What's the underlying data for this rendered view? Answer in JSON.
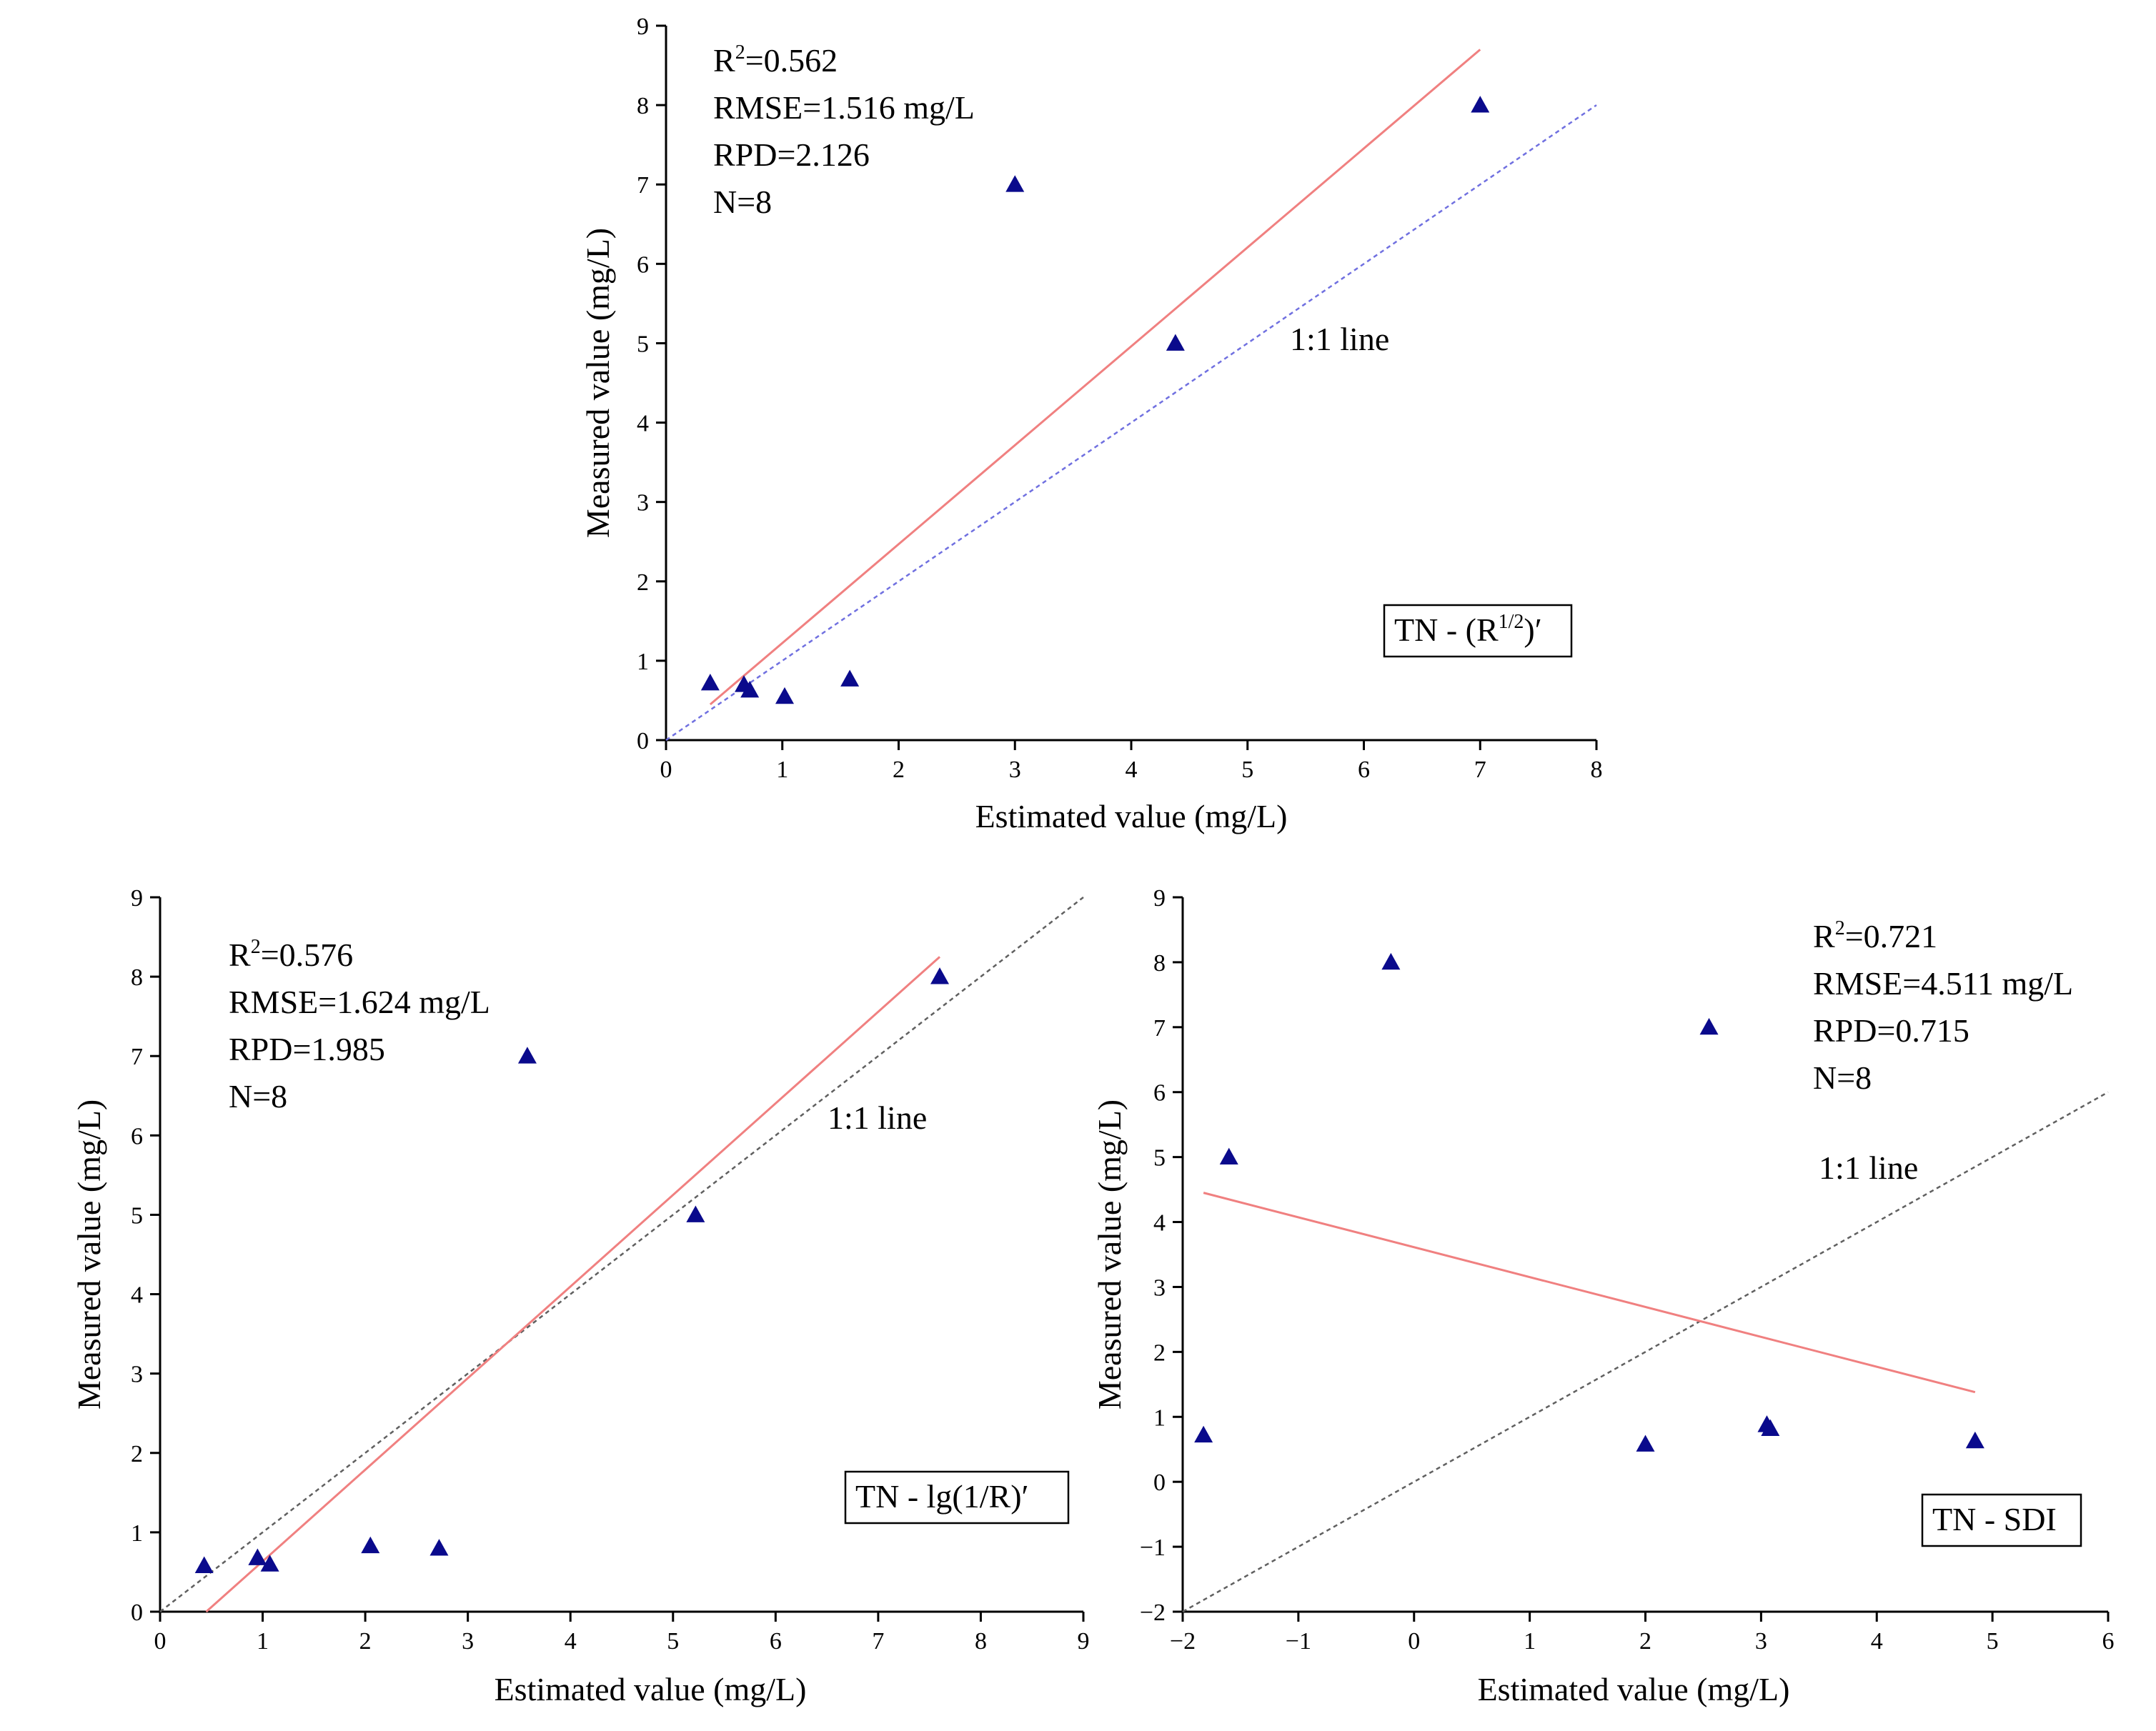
{
  "chart_data": [
    {
      "type": "scatter",
      "id": "top",
      "box_label": {
        "main": "TN - (R",
        "sup": "1/2",
        "tail": ")′"
      },
      "xlabel": "Estimated value (mg/L)",
      "ylabel": "Measured value (mg/L)",
      "xlim": [
        0,
        8
      ],
      "ylim": [
        0,
        9
      ],
      "xticks": [
        0,
        1,
        2,
        3,
        4,
        5,
        6,
        7,
        8
      ],
      "yticks": [
        0,
        1,
        2,
        3,
        4,
        5,
        6,
        7,
        8,
        9
      ],
      "stats": {
        "r2_base": "R",
        "r2_sup": "2",
        "r2_value": "=0.562",
        "rmse": "RMSE=1.516 mg/L",
        "rpd": "RPD=2.126",
        "n": "N=8"
      },
      "one_to_one_label": "1:1 line",
      "points": [
        {
          "x": 0.38,
          "y": 0.72
        },
        {
          "x": 0.67,
          "y": 0.7
        },
        {
          "x": 0.72,
          "y": 0.63
        },
        {
          "x": 1.02,
          "y": 0.55
        },
        {
          "x": 1.58,
          "y": 0.77
        },
        {
          "x": 3.0,
          "y": 7.0
        },
        {
          "x": 4.38,
          "y": 5.0
        },
        {
          "x": 7.0,
          "y": 8.0
        }
      ],
      "fit_line": {
        "x1": 0.38,
        "y1": 0.45,
        "x2": 7.0,
        "y2": 8.7
      },
      "one_to_one_line": {
        "x1": 0,
        "y1": 0,
        "x2": 8,
        "y2": 8
      },
      "colors": {
        "points": "#0a0a8c",
        "fit": "#f08080",
        "one_to_one": "#7070e0"
      }
    },
    {
      "type": "scatter",
      "id": "bottom-left",
      "box_label": {
        "main": "TN - lg(1/R)′",
        "sup": "",
        "tail": ""
      },
      "xlabel": "Estimated value (mg/L)",
      "ylabel": "Measured value (mg/L)",
      "xlim": [
        0,
        9
      ],
      "ylim": [
        0,
        9
      ],
      "xticks": [
        0,
        1,
        2,
        3,
        4,
        5,
        6,
        7,
        8,
        9
      ],
      "yticks": [
        0,
        1,
        2,
        3,
        4,
        5,
        6,
        7,
        8,
        9
      ],
      "stats": {
        "r2_base": "R",
        "r2_sup": "2",
        "r2_value": "=0.576",
        "rmse": "RMSE=1.624 mg/L",
        "rpd": "RPD=1.985",
        "n": "N=8"
      },
      "one_to_one_label": "1:1 line",
      "points": [
        {
          "x": 0.43,
          "y": 0.58
        },
        {
          "x": 0.95,
          "y": 0.68
        },
        {
          "x": 1.07,
          "y": 0.6
        },
        {
          "x": 2.05,
          "y": 0.83
        },
        {
          "x": 2.72,
          "y": 0.8
        },
        {
          "x": 3.58,
          "y": 7.0
        },
        {
          "x": 5.22,
          "y": 5.0
        },
        {
          "x": 7.6,
          "y": 8.0
        }
      ],
      "fit_line": {
        "x1": 0.45,
        "y1": 0.0,
        "x2": 7.6,
        "y2": 8.25
      },
      "one_to_one_line": {
        "x1": 0,
        "y1": 0,
        "x2": 9,
        "y2": 9
      },
      "colors": {
        "points": "#0a0a8c",
        "fit": "#f08080",
        "one_to_one": "#606060"
      }
    },
    {
      "type": "scatter",
      "id": "bottom-right",
      "box_label": {
        "main": "TN - SDI",
        "sup": "",
        "tail": ""
      },
      "xlabel": "Estimated value (mg/L)",
      "ylabel": "Measured value (mg/L)",
      "xlim": [
        -2,
        6
      ],
      "ylim": [
        -2,
        9
      ],
      "xticks": [
        -2,
        -1,
        0,
        1,
        2,
        3,
        4,
        5,
        6
      ],
      "xtick_labels": [
        "−2",
        "−1",
        "0",
        "1",
        "2",
        "3",
        "4",
        "5",
        "6"
      ],
      "yticks": [
        -2,
        -1,
        0,
        1,
        2,
        3,
        4,
        5,
        6,
        7,
        8,
        9
      ],
      "ytick_labels": [
        "−2",
        "−1",
        "0",
        "1",
        "2",
        "3",
        "4",
        "5",
        "6",
        "7",
        "8",
        "9"
      ],
      "stats": {
        "r2_base": "R",
        "r2_sup": "2",
        "r2_value": "=0.721",
        "rmse": "RMSE=4.511 mg/L",
        "rpd": "RPD=0.715",
        "n": "N=8"
      },
      "one_to_one_label": "1:1 line",
      "points": [
        {
          "x": -1.82,
          "y": 0.72
        },
        {
          "x": -1.6,
          "y": 5.0
        },
        {
          "x": -0.2,
          "y": 8.0
        },
        {
          "x": 2.0,
          "y": 0.58
        },
        {
          "x": 2.55,
          "y": 7.0
        },
        {
          "x": 3.05,
          "y": 0.88
        },
        {
          "x": 3.08,
          "y": 0.82
        },
        {
          "x": 4.85,
          "y": 0.63
        }
      ],
      "fit_line": {
        "x1": -1.82,
        "y1": 4.45,
        "x2": 4.85,
        "y2": 1.38
      },
      "one_to_one_line": {
        "x1": -2,
        "y1": -2,
        "x2": 6,
        "y2": 6
      },
      "colors": {
        "points": "#0a0a8c",
        "fit": "#f08080",
        "one_to_one": "#606060"
      }
    }
  ]
}
